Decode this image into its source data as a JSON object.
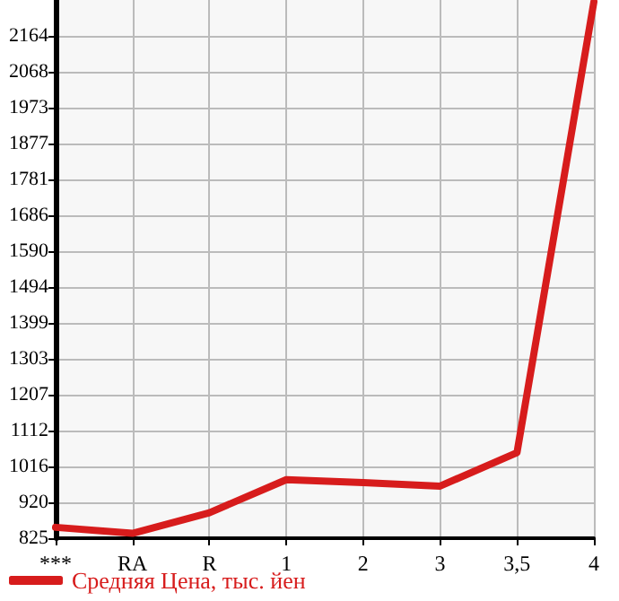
{
  "chart_data": {
    "type": "line",
    "categories": [
      "***",
      "RA",
      "R",
      "1",
      "2",
      "3",
      "3,5",
      "4"
    ],
    "series": [
      {
        "name": "Средняя Цена, тыс. йен",
        "color": "#d71c1c",
        "values": [
          854,
          838,
          893,
          981,
          973,
          964,
          1053,
          2255
        ]
      }
    ],
    "ylim": [
      825,
      2260
    ],
    "yticks": [
      825,
      920,
      1016,
      1112,
      1207,
      1303,
      1399,
      1494,
      1590,
      1686,
      1781,
      1877,
      1973,
      2068,
      2164
    ],
    "grid": true,
    "legend": "bottom left",
    "marker": "none",
    "line_style": "solid"
  }
}
